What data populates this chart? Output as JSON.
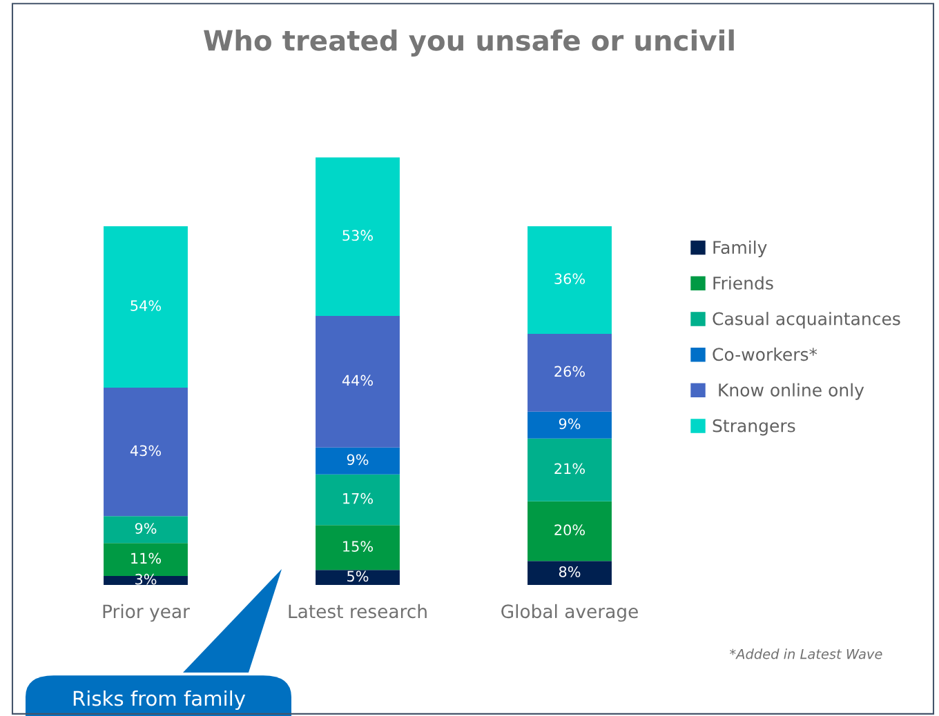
{
  "chart_data": {
    "type": "bar",
    "title": "Who treated you unsafe or uncivil",
    "categories": [
      "Prior year",
      "Latest research",
      "Global average"
    ],
    "stacked": true,
    "legend": "right",
    "grid": false,
    "series": [
      {
        "name": "Family",
        "color": "#002050",
        "values": [
          3,
          5,
          8
        ],
        "value_labels": [
          "3%",
          "5%",
          "8%"
        ]
      },
      {
        "name": "Friends",
        "color": "#009a44",
        "values": [
          11,
          15,
          20
        ],
        "value_labels": [
          "11%",
          "15%",
          "20%"
        ]
      },
      {
        "name": "Casual acquaintances",
        "color": "#00b08c",
        "values": [
          9,
          17,
          21
        ],
        "value_labels": [
          "9%",
          "17%",
          "21%"
        ]
      },
      {
        "name": "Co-workers*",
        "color": "#0070c8",
        "values": [
          null,
          9,
          9
        ],
        "value_labels": [
          null,
          "9%",
          "9%"
        ]
      },
      {
        "name": " Know online only",
        "color": "#4668c4",
        "values": [
          43,
          44,
          26
        ],
        "value_labels": [
          "43%",
          "44%",
          "26%"
        ]
      },
      {
        "name": "Strangers",
        "color": "#00d7c8",
        "values": [
          54,
          53,
          36
        ],
        "value_labels": [
          "54%",
          "53%",
          "36%"
        ]
      }
    ],
    "annotations": [
      "*Added in Latest Wave",
      "Risks from family"
    ]
  }
}
